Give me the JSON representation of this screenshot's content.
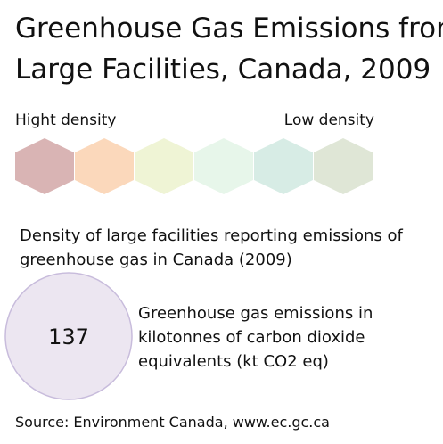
{
  "title_lines": [
    "Greenhouse Gas Emissions from",
    "Large Facilities, Canada, 2009"
  ],
  "density_scale": {
    "high_label": "Hight density",
    "low_label": "Low density",
    "colors": [
      "#d9b4b4",
      "#fbd8bb",
      "#eff4d5",
      "#e7f6ea",
      "#d7ece5",
      "#dfe6d6"
    ]
  },
  "density_description_lines": [
    "Density of large facilities reporting emissions of",
    "greenhouse gas in Canada (2009)"
  ],
  "circle": {
    "value": 137,
    "fill": "#ece6f1",
    "stroke": "#c8bcdc",
    "description_lines": [
      "Greenhouse gas emissions in",
      "kilotonnes of carbon dioxide",
      "equivalents (kt CO2 eq)"
    ]
  },
  "source": "Source: Environment Canada, www.ec.gc.ca"
}
